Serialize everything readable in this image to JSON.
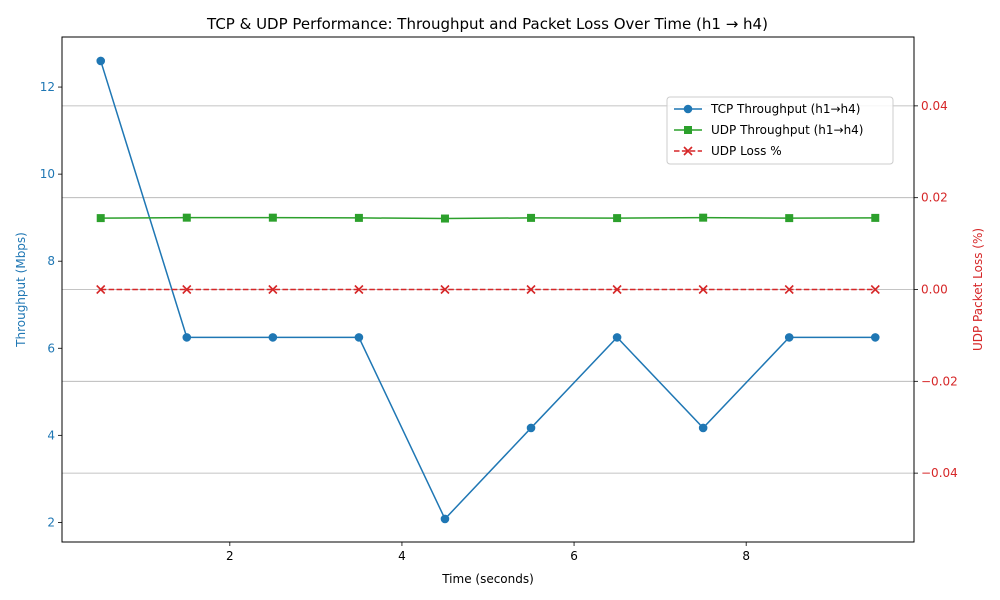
{
  "chart_data": {
    "type": "line",
    "title": "TCP & UDP Performance: Throughput and Packet Loss Over Time (h1 → h4)",
    "xlabel": "Time (seconds)",
    "ylabel_left": "Throughput (Mbps)",
    "ylabel_right": "UDP Packet Loss (%)",
    "xlim": [
      0.05,
      9.95
    ],
    "ylim_left": [
      1.55,
      13.15
    ],
    "ylim_right": [
      -0.055,
      0.055
    ],
    "x_ticks": [
      2,
      4,
      6,
      8
    ],
    "x_tick_labels": [
      "2",
      "4",
      "6",
      "8"
    ],
    "y_left_ticks": [
      2,
      4,
      6,
      8,
      10,
      12
    ],
    "y_left_tick_labels": [
      "2",
      "4",
      "6",
      "8",
      "10",
      "12"
    ],
    "y_right_ticks": [
      -0.04,
      -0.02,
      0,
      0.02,
      0.04
    ],
    "y_right_tick_labels": [
      "−0.04",
      "−0.02",
      "0.00",
      "0.02",
      "0.04"
    ],
    "grid": "horizontal, right axis",
    "legend_position": "upper-right",
    "x": [
      0.5,
      1.5,
      2.5,
      3.5,
      4.5,
      5.5,
      6.5,
      7.5,
      8.5,
      9.5
    ],
    "series": [
      {
        "name": "TCP Throughput (h1→h4)",
        "axis": "left",
        "color": "#1f77b4",
        "marker": "circle",
        "linestyle": "solid",
        "values": [
          12.6,
          6.25,
          6.25,
          6.25,
          2.08,
          4.17,
          6.25,
          4.17,
          6.25,
          6.25
        ]
      },
      {
        "name": "UDP Throughput (h1→h4)",
        "axis": "left",
        "color": "#2ca02c",
        "marker": "square",
        "linestyle": "solid",
        "values": [
          8.99,
          9.0,
          9.0,
          8.995,
          8.98,
          8.995,
          8.99,
          9.0,
          8.99,
          8.995
        ]
      },
      {
        "name": "UDP Loss %",
        "axis": "right",
        "color": "#d62728",
        "marker": "x",
        "linestyle": "dashed",
        "values": [
          0,
          0,
          0,
          0,
          0,
          0,
          0,
          0,
          0,
          0
        ]
      }
    ]
  },
  "colors": {
    "left_axis": "#1f77b4",
    "right_axis": "#d62728",
    "grid": "#b0b0b0"
  }
}
